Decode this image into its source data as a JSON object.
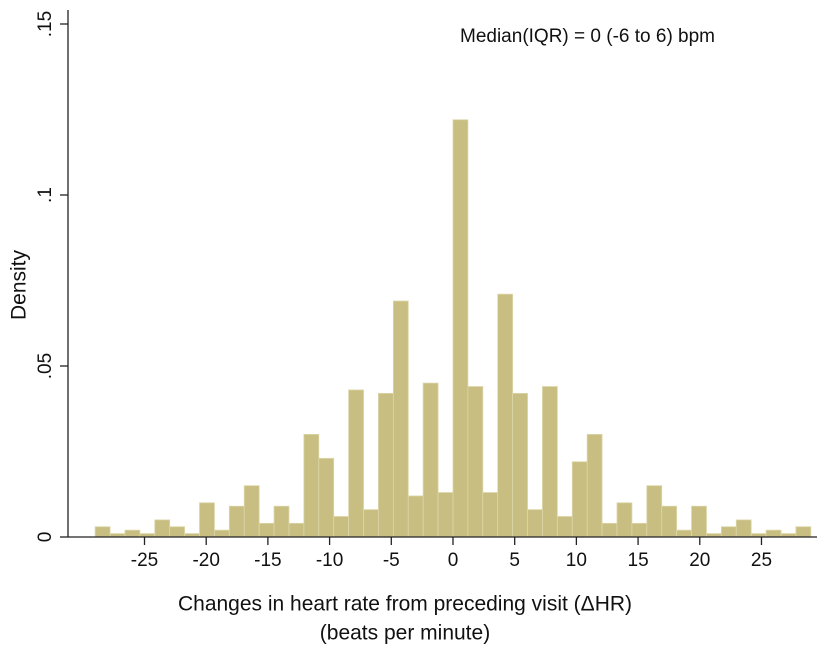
{
  "chart_data": {
    "type": "histogram",
    "annotation": "Median(IQR)  = 0 (-6 to 6) bpm",
    "xlabel": [
      "Changes in heart rate from preceding visit (ΔHR)",
      "(beats per minute)"
    ],
    "ylabel": "Density",
    "color": "#c8be82",
    "bins": [
      -29,
      -27.792,
      -26.583,
      -25.375,
      -24.167,
      -22.958,
      -21.75,
      -20.542,
      -19.333,
      -18.125,
      -16.917,
      -15.708,
      -14.5,
      -13.292,
      -12.083,
      -10.875,
      -9.667,
      -8.458,
      -7.25,
      -6.042,
      -4.833,
      -3.625,
      -2.417,
      -1.208,
      0,
      1.208,
      2.417,
      3.625,
      4.833,
      6.042,
      7.25,
      8.458,
      9.667,
      10.875,
      12.083,
      13.292,
      14.5,
      15.708,
      16.917,
      18.125,
      19.333,
      20.542,
      21.75,
      22.958,
      24.167,
      25.375,
      26.583,
      27.792,
      29
    ],
    "values": [
      0.003,
      0.001,
      0.002,
      0.001,
      0.005,
      0.003,
      0.001,
      0.01,
      0.002,
      0.009,
      0.015,
      0.004,
      0.009,
      0.004,
      0.03,
      0.023,
      0.006,
      0.043,
      0.008,
      0.042,
      0.069,
      0.012,
      0.045,
      0.013,
      0.122,
      0.044,
      0.013,
      0.071,
      0.042,
      0.008,
      0.044,
      0.006,
      0.022,
      0.03,
      0.004,
      0.01,
      0.004,
      0.015,
      0.009,
      0.002,
      0.009,
      0.001,
      0.003,
      0.005,
      0.001,
      0.002,
      0.001,
      0.003
    ],
    "xlim": [
      -31.2,
      29.5
    ],
    "ylim": [
      0,
      0.15
    ],
    "xticks": [
      -25,
      -20,
      -15,
      -10,
      -5,
      0,
      5,
      10,
      15,
      20,
      25
    ],
    "yticks": [
      0,
      {
        "value": 0.05,
        "label": ".05"
      },
      {
        "value": 0.1,
        "label": ".1"
      },
      {
        "value": 0.15,
        "label": ".15"
      }
    ]
  }
}
